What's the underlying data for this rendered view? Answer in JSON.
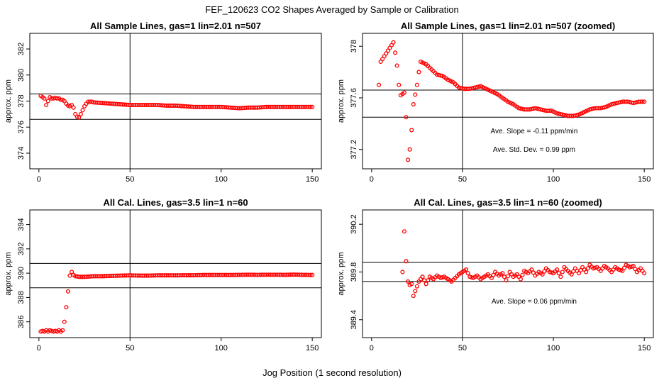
{
  "title": "FEF_120623  CO2 Shapes Averaged by Sample or Calibration",
  "xlabel": "Jog Position (1 second resolution)",
  "chart_data": [
    {
      "type": "scatter",
      "title": "All Sample Lines, gas=1 lin=2.01 n=507",
      "ylabel": "approx. ppm",
      "xlim": [
        -5,
        155
      ],
      "ylim": [
        372.8,
        383.2
      ],
      "xticks": [
        0,
        50,
        100,
        150
      ],
      "yticks": [
        374,
        376,
        378,
        380,
        382
      ],
      "vline": 50,
      "hlines": [
        376.6,
        378.55
      ],
      "annotations": [],
      "series": [
        {
          "color": "#ff0000",
          "x": [],
          "y": [],
          "points": [
            [
              1,
              378.4
            ],
            [
              2,
              378.3
            ],
            [
              3,
              378.2
            ],
            [
              4,
              377.7
            ],
            [
              5,
              378.0
            ],
            [
              6,
              378.3
            ],
            [
              7,
              378.2
            ],
            [
              8,
              378.2
            ],
            [
              9,
              378.25
            ],
            [
              10,
              378.2
            ],
            [
              11,
              378.2
            ],
            [
              12,
              378.1
            ],
            [
              13,
              378.1
            ],
            [
              14,
              378.0
            ],
            [
              15,
              377.8
            ],
            [
              16,
              377.65
            ],
            [
              17,
              377.6
            ],
            [
              18,
              377.7
            ],
            [
              19,
              377.5
            ],
            [
              20,
              377.0
            ],
            [
              21,
              376.8
            ],
            [
              22,
              376.75
            ],
            [
              23,
              377.0
            ],
            [
              24,
              377.3
            ],
            [
              25,
              377.6
            ],
            [
              26,
              377.8
            ],
            [
              27,
              377.95
            ],
            [
              28,
              377.95
            ],
            [
              29,
              377.95
            ],
            [
              30,
              377.9
            ],
            [
              35,
              377.85
            ],
            [
              40,
              377.8
            ],
            [
              45,
              377.75
            ],
            [
              50,
              377.7
            ],
            [
              55,
              377.7
            ],
            [
              60,
              377.7
            ],
            [
              65,
              377.7
            ],
            [
              70,
              377.65
            ],
            [
              75,
              377.65
            ],
            [
              80,
              377.6
            ],
            [
              85,
              377.55
            ],
            [
              90,
              377.55
            ],
            [
              95,
              377.55
            ],
            [
              100,
              377.55
            ],
            [
              105,
              377.5
            ],
            [
              110,
              377.45
            ],
            [
              115,
              377.5
            ],
            [
              120,
              377.5
            ],
            [
              125,
              377.55
            ],
            [
              130,
              377.55
            ],
            [
              135,
              377.55
            ],
            [
              140,
              377.55
            ],
            [
              145,
              377.55
            ],
            [
              150,
              377.55
            ]
          ]
        }
      ]
    },
    {
      "type": "scatter",
      "title": "All Sample Lines, gas=1 lin=2.01 n=507 (zoomed)",
      "ylabel": "approx. ppm",
      "xlim": [
        -5,
        155
      ],
      "ylim": [
        377.05,
        378.1
      ],
      "xticks": [
        0,
        50,
        100,
        150
      ],
      "yticks": [
        377.2,
        377.6,
        378.0
      ],
      "vline": 50,
      "hlines": [
        377.45,
        377.66
      ],
      "annotations": [
        "Ave. Slope =  -0.11  ppm/min",
        "Ave. Std. Dev. =  0.99  ppm"
      ],
      "series": [
        {
          "color": "#ff0000",
          "x": [],
          "y": [],
          "points": [
            [
              4,
              377.7
            ],
            [
              5,
              377.88
            ],
            [
              12,
              378.03
            ],
            [
              13,
              377.95
            ],
            [
              14,
              377.85
            ],
            [
              15,
              377.7
            ],
            [
              16,
              377.62
            ],
            [
              17,
              377.63
            ],
            [
              18,
              377.64
            ],
            [
              19,
              377.45
            ],
            [
              20,
              377.12
            ],
            [
              21,
              377.2
            ],
            [
              22,
              377.35
            ],
            [
              23,
              377.55
            ],
            [
              25,
              377.7
            ],
            [
              26,
              377.8
            ],
            [
              27,
              377.88
            ],
            [
              30,
              377.86
            ],
            [
              33,
              377.82
            ],
            [
              36,
              377.78
            ],
            [
              39,
              377.77
            ],
            [
              42,
              377.74
            ],
            [
              45,
              377.72
            ],
            [
              48,
              377.68
            ],
            [
              51,
              377.67
            ],
            [
              54,
              377.67
            ],
            [
              57,
              377.68
            ],
            [
              60,
              377.69
            ],
            [
              63,
              377.67
            ],
            [
              66,
              377.65
            ],
            [
              69,
              377.63
            ],
            [
              72,
              377.6
            ],
            [
              75,
              377.57
            ],
            [
              78,
              377.55
            ],
            [
              81,
              377.52
            ],
            [
              84,
              377.51
            ],
            [
              87,
              377.51
            ],
            [
              90,
              377.52
            ],
            [
              93,
              377.51
            ],
            [
              96,
              377.5
            ],
            [
              99,
              377.5
            ],
            [
              102,
              377.48
            ],
            [
              105,
              377.47
            ],
            [
              108,
              377.46
            ],
            [
              111,
              377.46
            ],
            [
              114,
              377.47
            ],
            [
              117,
              377.49
            ],
            [
              120,
              377.51
            ],
            [
              123,
              377.52
            ],
            [
              126,
              377.52
            ],
            [
              129,
              377.53
            ],
            [
              132,
              377.55
            ],
            [
              135,
              377.56
            ],
            [
              138,
              377.57
            ],
            [
              141,
              377.57
            ],
            [
              144,
              377.56
            ],
            [
              147,
              377.57
            ],
            [
              150,
              377.57
            ]
          ]
        }
      ]
    },
    {
      "type": "scatter",
      "title": "All Cal. Lines, gas=3.5 lin=1 n=60",
      "ylabel": "approx. ppm",
      "xlim": [
        -5,
        155
      ],
      "ylim": [
        384.7,
        395.2
      ],
      "xticks": [
        0,
        50,
        100,
        150
      ],
      "yticks": [
        386,
        388,
        390,
        392,
        394
      ],
      "vline": 50,
      "hlines": [
        388.8,
        390.8
      ],
      "annotations": [],
      "series": [
        {
          "color": "#ff0000",
          "x": [],
          "y": [],
          "points": [
            [
              1,
              385.2
            ],
            [
              2,
              385.25
            ],
            [
              3,
              385.2
            ],
            [
              4,
              385.3
            ],
            [
              5,
              385.2
            ],
            [
              6,
              385.3
            ],
            [
              7,
              385.25
            ],
            [
              8,
              385.2
            ],
            [
              9,
              385.25
            ],
            [
              10,
              385.2
            ],
            [
              11,
              385.3
            ],
            [
              12,
              385.2
            ],
            [
              13,
              385.3
            ],
            [
              14,
              386.0
            ],
            [
              15,
              387.2
            ],
            [
              16,
              388.5
            ],
            [
              17,
              389.8
            ],
            [
              18,
              390.1
            ],
            [
              19,
              389.85
            ],
            [
              20,
              389.75
            ],
            [
              22,
              389.7
            ],
            [
              25,
              389.7
            ],
            [
              30,
              389.75
            ],
            [
              35,
              389.75
            ],
            [
              40,
              389.78
            ],
            [
              45,
              389.8
            ],
            [
              50,
              389.82
            ],
            [
              55,
              389.8
            ],
            [
              60,
              389.8
            ],
            [
              65,
              389.82
            ],
            [
              70,
              389.82
            ],
            [
              75,
              389.82
            ],
            [
              80,
              389.83
            ],
            [
              85,
              389.83
            ],
            [
              90,
              389.85
            ],
            [
              95,
              389.85
            ],
            [
              100,
              389.85
            ],
            [
              105,
              389.85
            ],
            [
              110,
              389.86
            ],
            [
              115,
              389.87
            ],
            [
              120,
              389.86
            ],
            [
              125,
              389.87
            ],
            [
              130,
              389.87
            ],
            [
              135,
              389.86
            ],
            [
              140,
              389.88
            ],
            [
              145,
              389.86
            ],
            [
              150,
              389.85
            ]
          ]
        }
      ]
    },
    {
      "type": "scatter",
      "title": "All Cal. Lines, gas=3.5 lin=1 n=60 (zoomed)",
      "ylabel": "approx. ppm",
      "xlim": [
        -5,
        155
      ],
      "ylim": [
        389.25,
        390.32
      ],
      "xticks": [
        0,
        50,
        100,
        150
      ],
      "yticks": [
        389.4,
        389.8,
        390.2
      ],
      "vline": 50,
      "hlines": [
        389.72,
        389.88
      ],
      "annotations": [
        "Ave. Slope =  0.06  ppm/min"
      ],
      "series": [
        {
          "color": "#ff0000",
          "x": [],
          "y": [],
          "points": [
            [
              17,
              389.8
            ],
            [
              18,
              390.14
            ],
            [
              19,
              389.89
            ],
            [
              20,
              389.72
            ],
            [
              21,
              389.69
            ],
            [
              22,
              389.7
            ],
            [
              23,
              389.6
            ],
            [
              24,
              389.64
            ],
            [
              25,
              389.68
            ],
            [
              26,
              389.72
            ],
            [
              27,
              389.74
            ],
            [
              28,
              389.76
            ],
            [
              30,
              389.7
            ],
            [
              32,
              389.76
            ],
            [
              34,
              389.74
            ],
            [
              36,
              389.77
            ],
            [
              38,
              389.75
            ],
            [
              40,
              389.76
            ],
            [
              42,
              389.74
            ],
            [
              44,
              389.72
            ],
            [
              46,
              389.75
            ],
            [
              48,
              389.78
            ],
            [
              50,
              389.8
            ],
            [
              52,
              389.82
            ],
            [
              54,
              389.76
            ],
            [
              56,
              389.75
            ],
            [
              58,
              389.77
            ],
            [
              60,
              389.74
            ],
            [
              62,
              389.76
            ],
            [
              64,
              389.78
            ],
            [
              66,
              389.75
            ],
            [
              68,
              389.8
            ],
            [
              70,
              389.77
            ],
            [
              72,
              389.79
            ],
            [
              74,
              389.73
            ],
            [
              76,
              389.8
            ],
            [
              78,
              389.76
            ],
            [
              80,
              389.78
            ],
            [
              82,
              389.74
            ],
            [
              84,
              389.81
            ],
            [
              86,
              389.79
            ],
            [
              88,
              389.82
            ],
            [
              90,
              389.77
            ],
            [
              92,
              389.8
            ],
            [
              94,
              389.78
            ],
            [
              96,
              389.83
            ],
            [
              98,
              389.8
            ],
            [
              100,
              389.79
            ],
            [
              102,
              389.82
            ],
            [
              104,
              389.76
            ],
            [
              106,
              389.84
            ],
            [
              108,
              389.81
            ],
            [
              110,
              389.78
            ],
            [
              112,
              389.83
            ],
            [
              114,
              389.79
            ],
            [
              116,
              389.84
            ],
            [
              118,
              389.8
            ],
            [
              120,
              389.86
            ],
            [
              122,
              389.83
            ],
            [
              124,
              389.84
            ],
            [
              126,
              389.81
            ],
            [
              128,
              389.85
            ],
            [
              130,
              389.83
            ],
            [
              132,
              389.8
            ],
            [
              134,
              389.84
            ],
            [
              136,
              389.82
            ],
            [
              138,
              389.81
            ],
            [
              140,
              389.86
            ],
            [
              142,
              389.84
            ],
            [
              144,
              389.85
            ],
            [
              146,
              389.8
            ],
            [
              148,
              389.83
            ],
            [
              150,
              389.79
            ]
          ]
        }
      ]
    }
  ]
}
